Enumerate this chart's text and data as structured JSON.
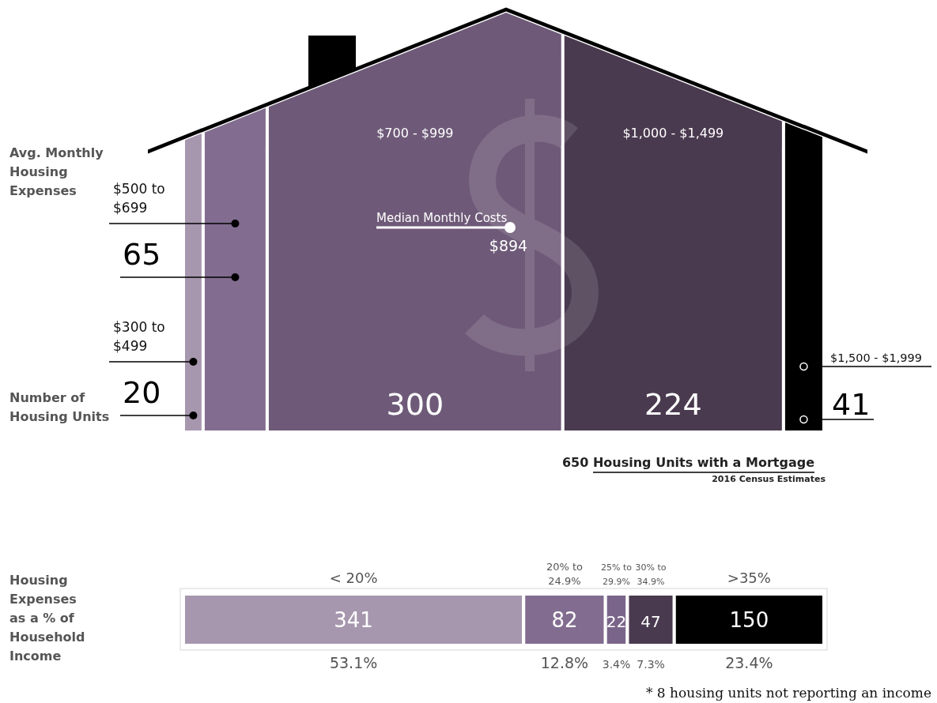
{
  "chart_data": [
    {
      "type": "bar",
      "orientation": "horizontal",
      "stacked": true,
      "categories": [
        null
      ],
      "data_labels": true,
      "title": "650 Housing Units with a Mortgage",
      "subtitle": "2016 Census Estimates",
      "annotations": [
        "Avg. Monthly Housing Expenses",
        "Number of Housing Units",
        "Median Monthly Costs",
        "$894"
      ],
      "series": [
        {
          "name": "$300 to $499",
          "color": "#a697ae",
          "values": [
            20
          ]
        },
        {
          "name": "$500 to $699",
          "color": "#826d90",
          "values": [
            65
          ]
        },
        {
          "name": "$700 - $999",
          "color": "#6e5a78",
          "values": [
            300
          ]
        },
        {
          "name": "$1,000 - $1,499",
          "color": "#4a3a4f",
          "values": [
            224
          ]
        },
        {
          "name": "$1,500 - $1,999",
          "color": "#000000",
          "values": [
            41
          ]
        }
      ]
    },
    {
      "type": "bar",
      "orientation": "horizontal",
      "stacked": true,
      "categories": [
        null
      ],
      "data_labels": true,
      "annotations": [
        "Housing Expenses as a % of Household Income",
        "53.1%",
        "12.8%",
        "3.4%",
        "7.3%",
        "23.4%",
        "* 8 housing units not reporting an income"
      ],
      "series": [
        {
          "name": "< 20%",
          "color": "#a697ae",
          "values": [
            341
          ]
        },
        {
          "name": "20% to 24.9%",
          "color": "#826d90",
          "values": [
            82
          ]
        },
        {
          "name": "25% to 29.9%",
          "color": "#7a658a",
          "values": [
            22
          ]
        },
        {
          "name": "30% to 34.9%",
          "color": "#4a3a4f",
          "values": [
            47
          ]
        },
        {
          "name": ">35%",
          "color": "#000000",
          "values": [
            150
          ]
        }
      ]
    }
  ]
}
